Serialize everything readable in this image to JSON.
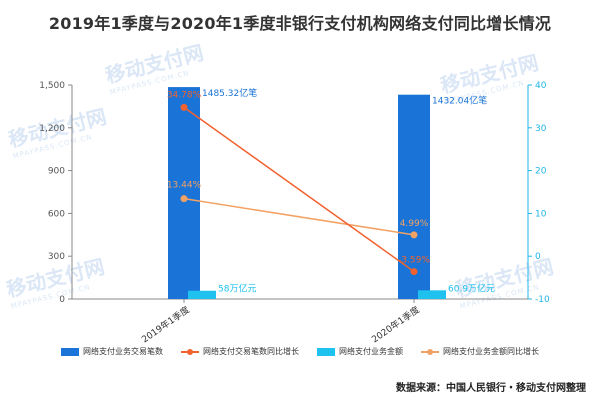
{
  "title": "2019年1季度与2020年1季度非银行支付机构网络支付同比增长情况",
  "source": "数据来源：中国人民银行・移动支付网整理",
  "watermark": {
    "text": "移动支付网",
    "sub": "MPAYPASS.COM.CN"
  },
  "colors": {
    "tx_count": "#1a73d6",
    "tx_count_growth": "#f2622f",
    "tx_amount": "#1fc1ef",
    "tx_amount_growth": "#f3a265",
    "left_axis": "#555555",
    "right_axis": "#1fb5e8"
  },
  "chart_data": {
    "type": "bar",
    "categories": [
      "2019年1季度",
      "2020年1季度"
    ],
    "series": [
      {
        "name": "网络支付业务交易笔数",
        "axis": "left",
        "kind": "bar",
        "values": [
          1485.32,
          1432.04
        ],
        "labels": [
          "1485.32亿笔",
          "1432.04亿笔"
        ]
      },
      {
        "name": "网络支付交易笔数同比增长",
        "axis": "right",
        "kind": "line",
        "values": [
          34.78,
          -3.59
        ],
        "labels": [
          "34.78%",
          "-3.59%"
        ]
      },
      {
        "name": "网络支付业务金额",
        "axis": "left",
        "kind": "bar",
        "values": [
          58,
          60.9
        ],
        "labels": [
          "58万亿元",
          "60.9万亿元"
        ]
      },
      {
        "name": "网络支付业务金额同比增长",
        "axis": "right",
        "kind": "line",
        "values": [
          13.44,
          4.99
        ],
        "labels": [
          "13.44%",
          "4.99%"
        ]
      }
    ],
    "y_left": {
      "min": 0,
      "max": 1500,
      "ticks": [
        0,
        300,
        600,
        900,
        1200,
        1500
      ],
      "tick_labels": [
        "0",
        "300",
        "600",
        "900",
        "1,200",
        "1,500"
      ]
    },
    "y_right": {
      "min": -10,
      "max": 40,
      "ticks": [
        -10,
        0,
        10,
        20,
        30,
        40
      ],
      "tick_labels": [
        "-10",
        "0",
        "10",
        "20",
        "30",
        "40"
      ]
    },
    "legend_position": "bottom",
    "grid": false
  }
}
